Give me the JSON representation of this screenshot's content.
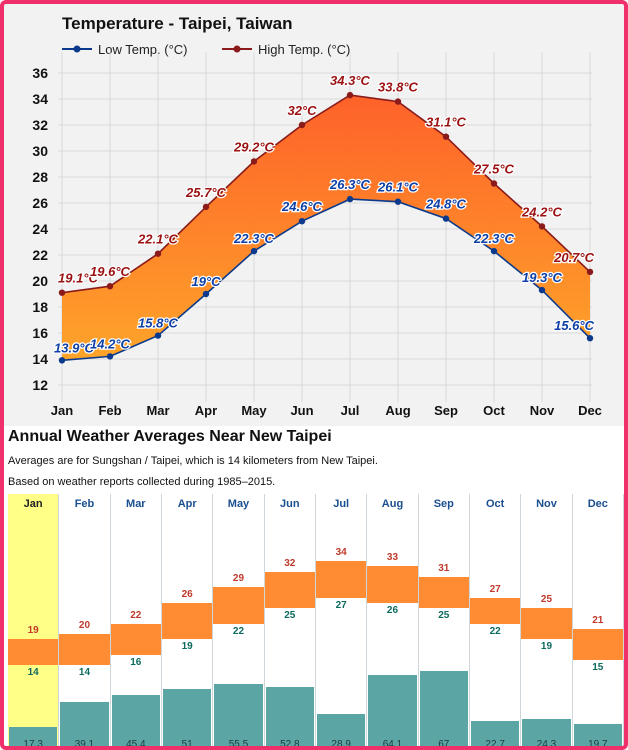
{
  "chart_data": [
    {
      "type": "line",
      "title": "Temperature - Taipei, Taiwan",
      "categories": [
        "Jan",
        "Feb",
        "Mar",
        "Apr",
        "May",
        "Jun",
        "Jul",
        "Aug",
        "Sep",
        "Oct",
        "Nov",
        "Dec"
      ],
      "series": [
        {
          "name": "Low Temp. (°C)",
          "color": "#0b3a8c",
          "values": [
            13.9,
            14.2,
            15.8,
            19,
            22.3,
            24.6,
            26.3,
            26.1,
            24.8,
            22.3,
            19.3,
            15.6
          ],
          "labels": [
            "13.9°C",
            "14.2°C",
            "15.8°C",
            "19°C",
            "22.3°C",
            "24.6°C",
            "26.3°C",
            "26.1°C",
            "24.8°C",
            "22.3°C",
            "19.3°C",
            "15.6°C"
          ]
        },
        {
          "name": "High Temp. (°C)",
          "color": "#8b1a1a",
          "values": [
            19.1,
            19.6,
            22.1,
            25.7,
            29.2,
            32,
            34.3,
            33.8,
            31.1,
            27.5,
            24.2,
            20.7
          ],
          "labels": [
            "19.1°C",
            "19.6°C",
            "22.1°C",
            "25.7°C",
            "29.2°C",
            "32°C",
            "34.3°C",
            "33.8°C",
            "31.1°C",
            "27.5°C",
            "24.2°C",
            "20.7°C"
          ]
        }
      ],
      "yticks": [
        12,
        14,
        16,
        18,
        20,
        22,
        24,
        26,
        28,
        30,
        32,
        34,
        36
      ],
      "ylim": [
        11,
        37
      ],
      "grid": true,
      "legend_position": "top-left"
    },
    {
      "type": "table",
      "title": "Annual Weather Averages Near New Taipei",
      "notes": [
        "Averages are for Sungshan / Taipei, which is 14 kilometers from New Taipei.",
        "Based on weather reports collected during 1985–2015."
      ],
      "months": [
        "Jan",
        "Feb",
        "Mar",
        "Apr",
        "May",
        "Jun",
        "Jul",
        "Aug",
        "Sep",
        "Oct",
        "Nov",
        "Dec"
      ],
      "selected_month": "Jan",
      "high": [
        19,
        20,
        22,
        26,
        29,
        32,
        34,
        33,
        31,
        27,
        25,
        21
      ],
      "low": [
        14,
        14,
        16,
        19,
        22,
        25,
        27,
        26,
        25,
        22,
        19,
        15
      ],
      "precip": [
        "17.3",
        "39.1",
        "45.4",
        "51",
        "55.5",
        "52.8",
        "28.9",
        "64.1",
        "67",
        "22.7",
        "24.3",
        "19.7"
      ],
      "precip_values": [
        17.3,
        39.1,
        45.4,
        51,
        55.5,
        52.8,
        28.9,
        64.1,
        67,
        22.7,
        24.3,
        19.7
      ]
    }
  ]
}
